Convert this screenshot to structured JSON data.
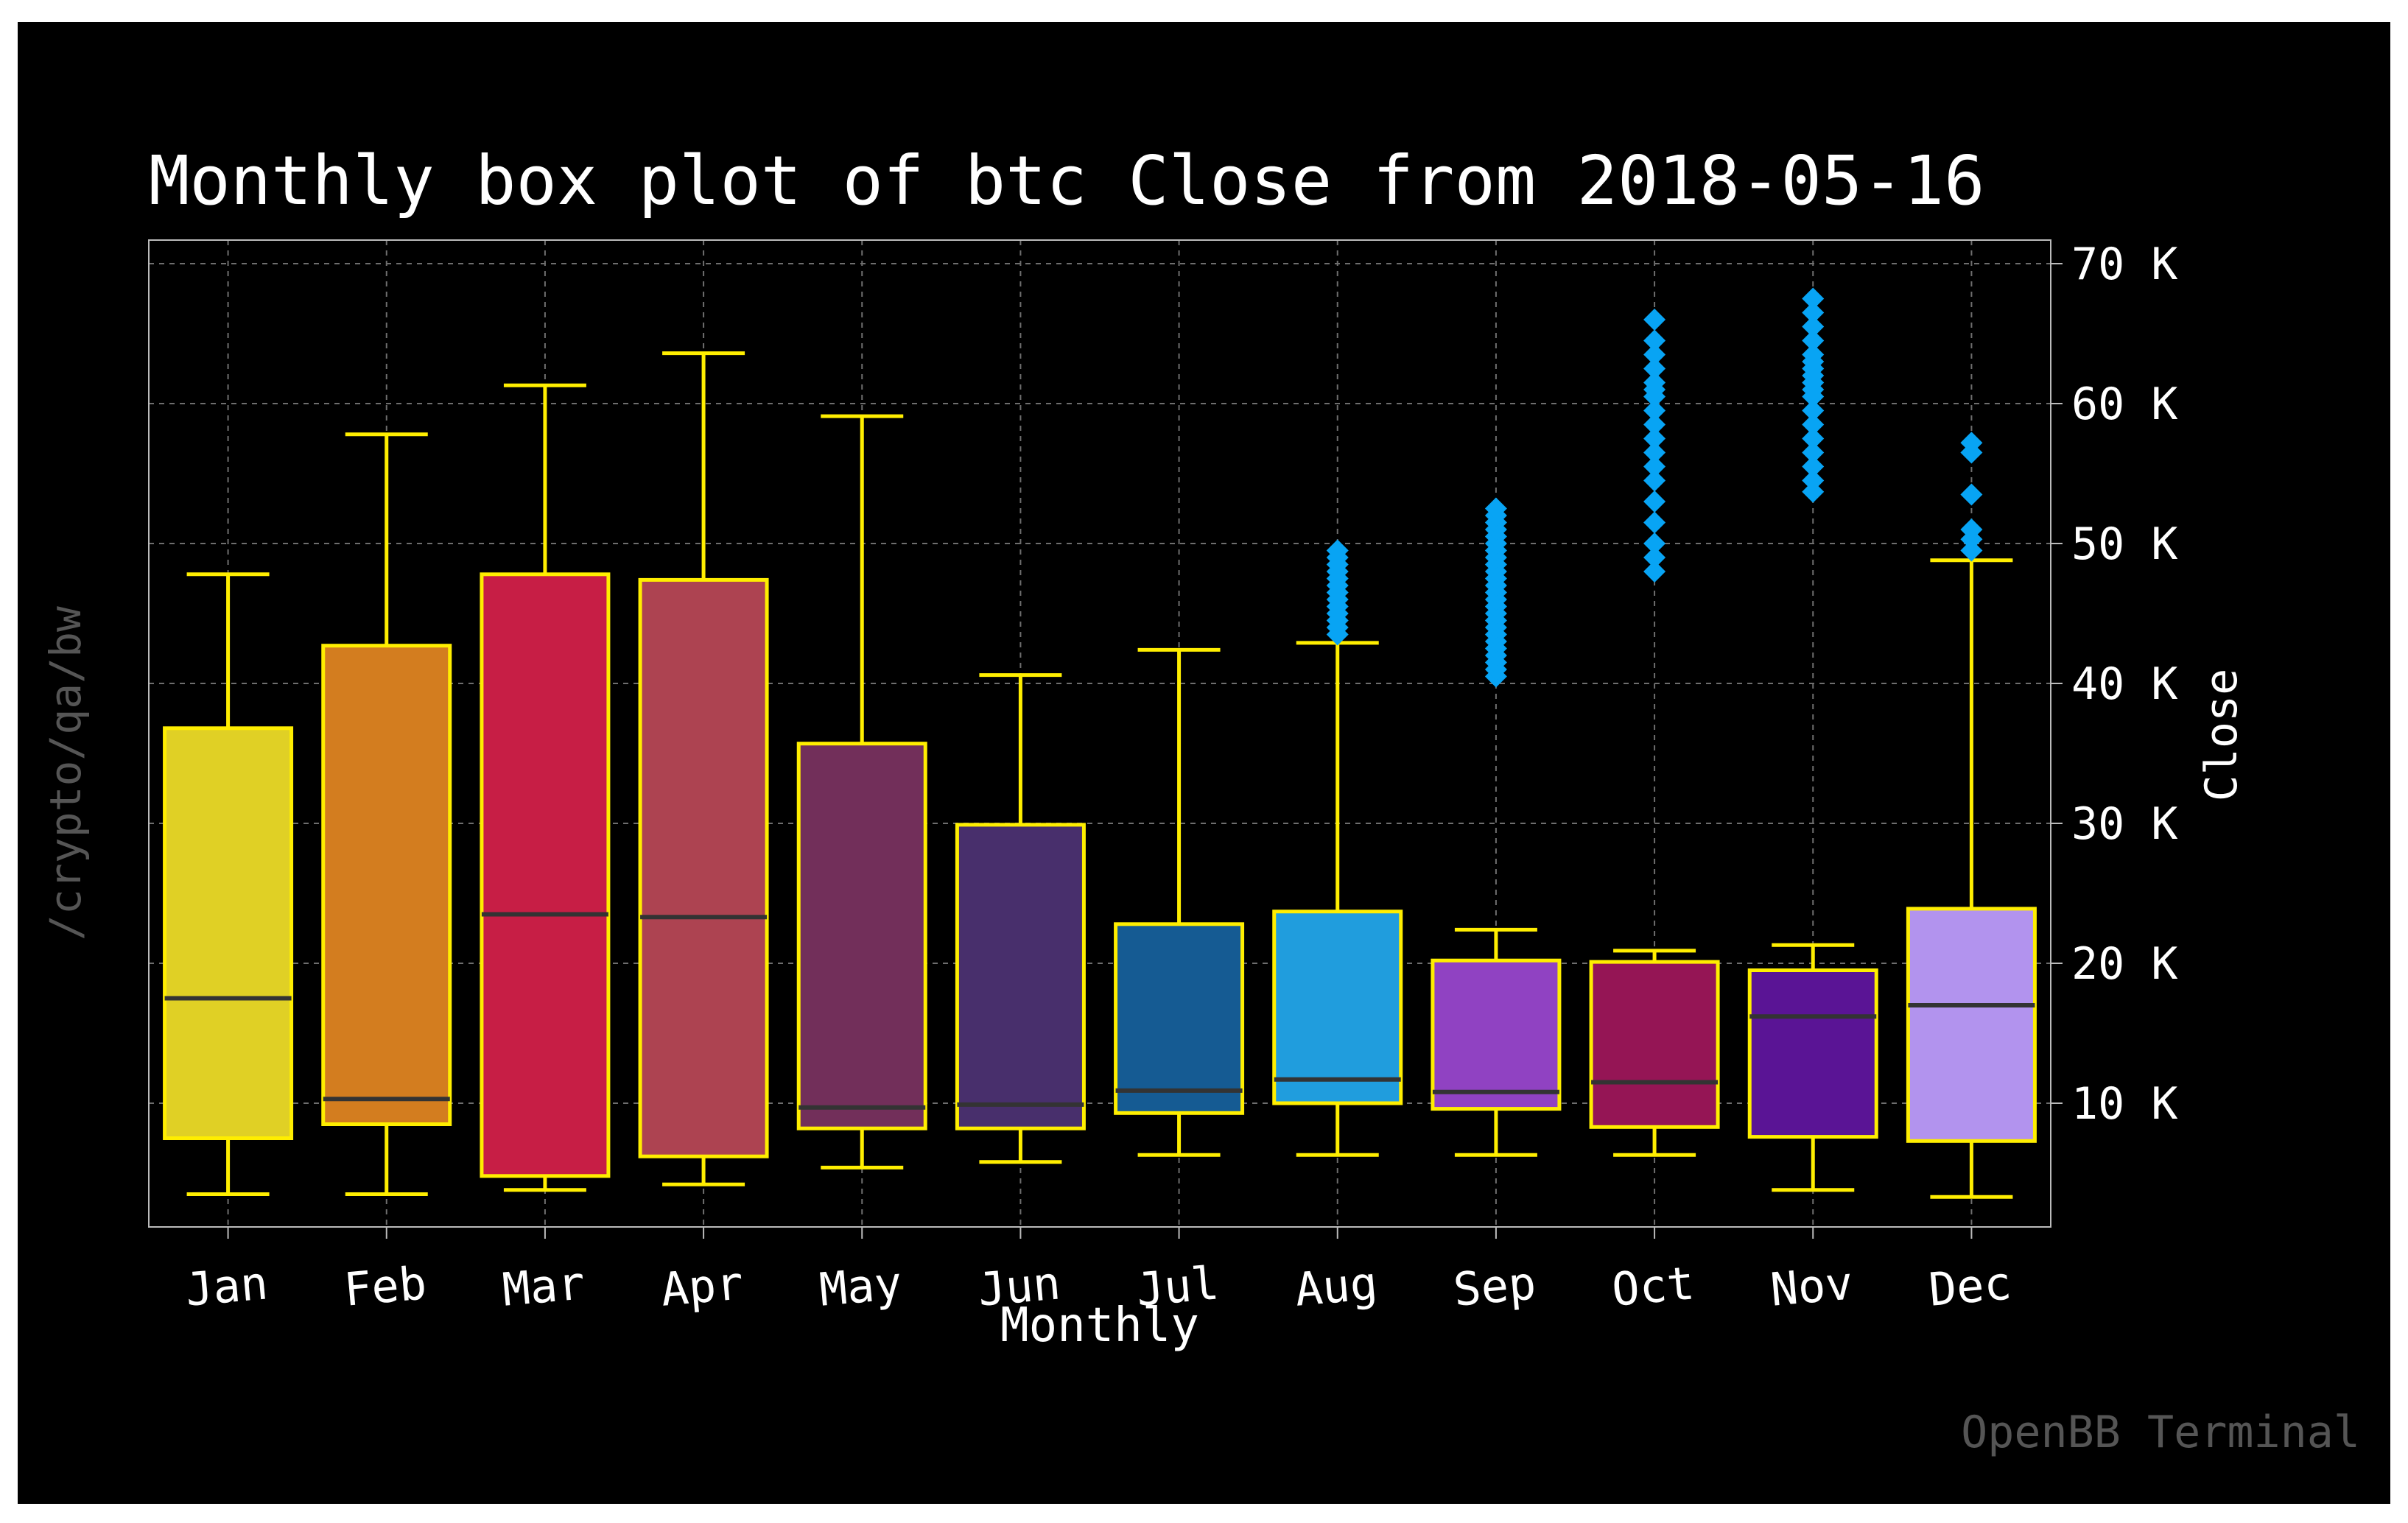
{
  "chart_data": {
    "type": "box",
    "title": "Monthly box plot of btc Close from 2018-05-16",
    "xlabel": "Monthly",
    "ylabel": "Close",
    "ylim": [
      0,
      70000
    ],
    "yticks": [
      {
        "value": 10000,
        "label": "10 K"
      },
      {
        "value": 20000,
        "label": "20 K"
      },
      {
        "value": 30000,
        "label": "30 K"
      },
      {
        "value": 40000,
        "label": "40 K"
      },
      {
        "value": 50000,
        "label": "50 K"
      },
      {
        "value": 60000,
        "label": "60 K"
      },
      {
        "value": 70000,
        "label": "70 K"
      }
    ],
    "grid": true,
    "boxes": [
      {
        "category": "Jan",
        "color": "#e0d025",
        "whislo": 3500,
        "q1": 7500,
        "med": 17500,
        "q3": 36800,
        "whishi": 47800,
        "fliers": []
      },
      {
        "category": "Feb",
        "color": "#d37d1f",
        "whislo": 3500,
        "q1": 8500,
        "med": 10300,
        "q3": 42700,
        "whishi": 57800,
        "fliers": []
      },
      {
        "category": "Mar",
        "color": "#c71e45",
        "whislo": 3800,
        "q1": 4800,
        "med": 23500,
        "q3": 47800,
        "whishi": 61300,
        "fliers": []
      },
      {
        "category": "Apr",
        "color": "#ad4351",
        "whislo": 4200,
        "q1": 6200,
        "med": 23300,
        "q3": 47400,
        "whishi": 63600,
        "fliers": []
      },
      {
        "category": "May",
        "color": "#722f5a",
        "whislo": 5400,
        "q1": 8200,
        "med": 9700,
        "q3": 35700,
        "whishi": 59100,
        "fliers": []
      },
      {
        "category": "Jun",
        "color": "#482f6c",
        "whislo": 5800,
        "q1": 8200,
        "med": 9900,
        "q3": 29900,
        "whishi": 40600,
        "fliers": []
      },
      {
        "category": "Jul",
        "color": "#155b93",
        "whislo": 6300,
        "q1": 9300,
        "med": 10900,
        "q3": 22800,
        "whishi": 42400,
        "fliers": []
      },
      {
        "category": "Aug",
        "color": "#209ddd",
        "whislo": 6300,
        "q1": 10000,
        "med": 11700,
        "q3": 23700,
        "whishi": 42900,
        "fliers": [
          43500,
          44000,
          44500,
          45000,
          45500,
          46000,
          46500,
          47000,
          47500,
          48000,
          48500,
          49000,
          49500
        ]
      },
      {
        "category": "Sep",
        "color": "#9042c2",
        "whislo": 6300,
        "q1": 9600,
        "med": 10800,
        "q3": 20200,
        "whishi": 22400,
        "fliers": [
          40500,
          41000,
          41500,
          42000,
          42500,
          43000,
          43500,
          44000,
          44500,
          45000,
          45500,
          46000,
          46500,
          47000,
          47500,
          48000,
          48500,
          49000,
          49500,
          50000,
          50500,
          51000,
          51500,
          52000,
          52500
        ]
      },
      {
        "category": "Oct",
        "color": "#951555",
        "whislo": 6300,
        "q1": 8300,
        "med": 11500,
        "q3": 20100,
        "whishi": 20900,
        "fliers": [
          48000,
          49000,
          50000,
          51500,
          53000,
          54500,
          55500,
          56500,
          57500,
          58500,
          59500,
          60500,
          61000,
          61500,
          62500,
          63500,
          64500,
          66000
        ]
      },
      {
        "category": "Nov",
        "color": "#5a1495",
        "whislo": 3800,
        "q1": 7600,
        "med": 16200,
        "q3": 19500,
        "whishi": 21300,
        "fliers": [
          53700,
          54500,
          55500,
          56500,
          57500,
          58500,
          59500,
          60500,
          61000,
          61500,
          62000,
          62500,
          63000,
          63500,
          64500,
          65500,
          66500,
          67500
        ]
      },
      {
        "category": "Dec",
        "color": "#b293ee",
        "whislo": 3300,
        "q1": 7300,
        "med": 17000,
        "q3": 23900,
        "whishi": 48800,
        "fliers": [
          49500,
          50300,
          51000,
          53500,
          56500,
          57200
        ]
      }
    ]
  },
  "watermark_side": "/crypto/qa/bw",
  "watermark_brand": "OpenBB Terminal"
}
